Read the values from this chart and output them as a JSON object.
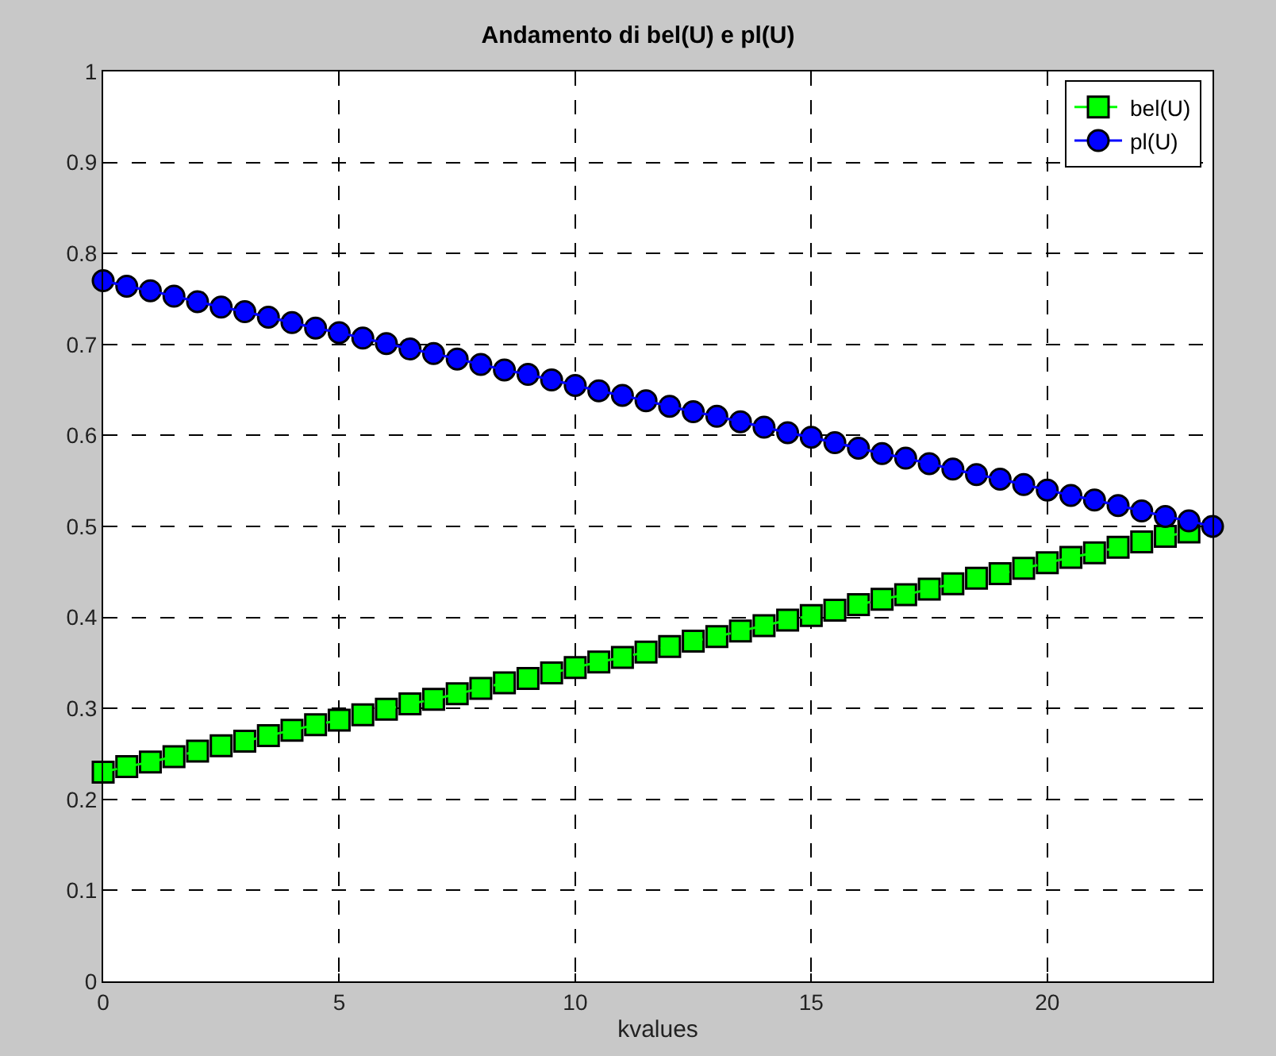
{
  "chart_data": {
    "type": "line",
    "title": "Andamento di bel(U) e pl(U)",
    "xlabel": "kvalues",
    "x": [
      0,
      0.5,
      1,
      1.5,
      2,
      2.5,
      3,
      3.5,
      4,
      4.5,
      5,
      5.5,
      6,
      6.5,
      7,
      7.5,
      8,
      8.5,
      9,
      9.5,
      10,
      10.5,
      11,
      11.5,
      12,
      12.5,
      13,
      13.5,
      14,
      14.5,
      15,
      15.5,
      16,
      16.5,
      17,
      17.5,
      18,
      18.5,
      19,
      19.5,
      20,
      20.5,
      21,
      21.5,
      22,
      22.5,
      23,
      23.5
    ],
    "series": [
      {
        "name": "bel(U)",
        "color": "#00ff00",
        "marker": "square",
        "line_style": "dashed",
        "values": [
          0.23,
          0.236,
          0.241,
          0.247,
          0.253,
          0.259,
          0.264,
          0.27,
          0.276,
          0.282,
          0.287,
          0.293,
          0.299,
          0.305,
          0.31,
          0.316,
          0.322,
          0.328,
          0.333,
          0.339,
          0.345,
          0.351,
          0.356,
          0.362,
          0.368,
          0.374,
          0.379,
          0.385,
          0.391,
          0.397,
          0.402,
          0.408,
          0.414,
          0.42,
          0.425,
          0.431,
          0.437,
          0.443,
          0.448,
          0.454,
          0.46,
          0.466,
          0.471,
          0.477,
          0.483,
          0.489,
          0.494,
          null
        ]
      },
      {
        "name": "pl(U)",
        "color": "#0000ff",
        "marker": "circle",
        "line_style": "solid",
        "values": [
          0.77,
          0.764,
          0.759,
          0.753,
          0.747,
          0.741,
          0.736,
          0.73,
          0.724,
          0.718,
          0.713,
          0.707,
          0.701,
          0.695,
          0.69,
          0.684,
          0.678,
          0.672,
          0.667,
          0.661,
          0.655,
          0.649,
          0.644,
          0.638,
          0.632,
          0.626,
          0.621,
          0.615,
          0.609,
          0.603,
          0.598,
          0.592,
          0.586,
          0.58,
          0.575,
          0.569,
          0.563,
          0.557,
          0.552,
          0.546,
          0.54,
          0.534,
          0.529,
          0.523,
          0.517,
          0.511,
          0.506,
          0.5
        ]
      }
    ],
    "xlim": [
      0,
      23.5
    ],
    "xticks": [
      0,
      5,
      10,
      15,
      20
    ],
    "ylim": [
      0,
      1
    ],
    "yticks": [
      0,
      0.1,
      0.2,
      0.3,
      0.4,
      0.5,
      0.6,
      0.7,
      0.8,
      0.9,
      1
    ],
    "grid": true,
    "legend": "top right"
  }
}
